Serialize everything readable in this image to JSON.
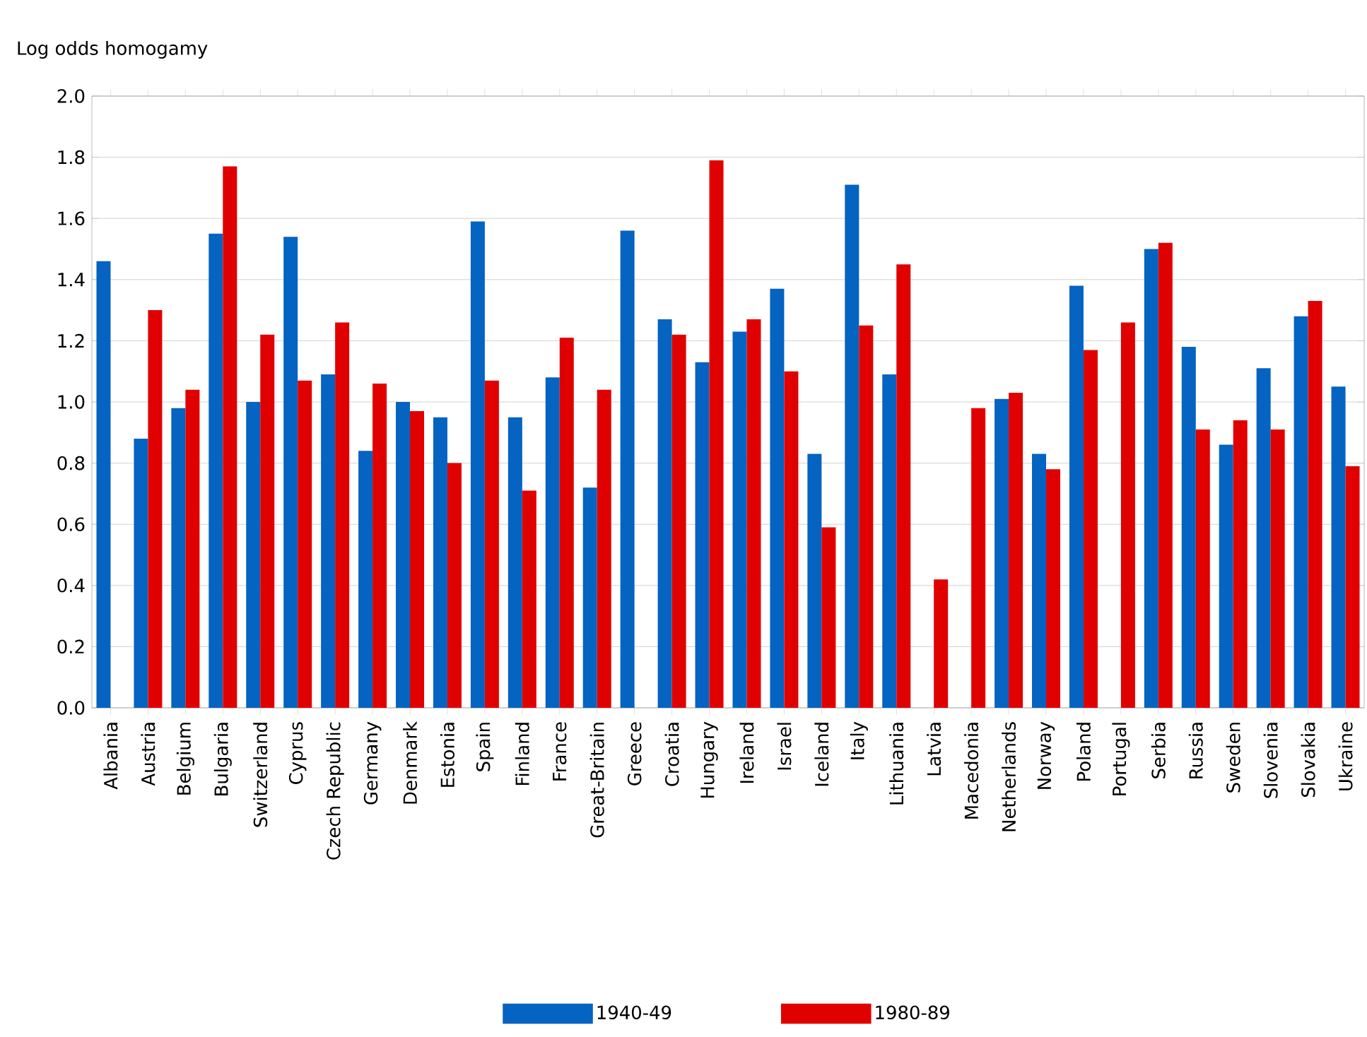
{
  "chart_data": {
    "type": "bar",
    "ylabel": "Log odds homogamy",
    "categories": [
      "Albania",
      "Austria",
      "Belgium",
      "Bulgaria",
      "Switzerland",
      "Cyprus",
      "Czech Republic",
      "Germany",
      "Denmark",
      "Estonia",
      "Spain",
      "Finland",
      "France",
      "Great-Britain",
      "Greece",
      "Croatia",
      "Hungary",
      "Ireland",
      "Israel",
      "Iceland",
      "Italy",
      "Lithuania",
      "Latvia",
      "Macedonia",
      "Netherlands",
      "Norway",
      "Poland",
      "Portugal",
      "Serbia",
      "Russia",
      "Sweden",
      "Slovenia",
      "Slovakia",
      "Ukraine"
    ],
    "series": [
      {
        "name": "1940-49",
        "color": "#0563c1",
        "values": [
          1.46,
          0.88,
          0.98,
          1.55,
          1.0,
          1.54,
          1.09,
          0.84,
          1.0,
          0.95,
          1.59,
          0.95,
          1.08,
          0.72,
          1.56,
          1.27,
          1.13,
          1.23,
          1.37,
          0.83,
          1.71,
          1.09,
          null,
          null,
          1.01,
          0.83,
          1.38,
          null,
          1.5,
          1.18,
          0.86,
          1.11,
          1.28,
          1.05
        ]
      },
      {
        "name": "1980-89",
        "color": "#e00000",
        "values": [
          null,
          1.3,
          1.04,
          1.77,
          1.22,
          1.07,
          1.26,
          1.06,
          0.97,
          0.8,
          1.07,
          0.71,
          1.21,
          1.04,
          null,
          1.22,
          1.79,
          1.27,
          1.1,
          0.59,
          1.25,
          1.45,
          0.42,
          0.98,
          1.03,
          0.78,
          1.17,
          1.26,
          1.52,
          0.91,
          0.94,
          0.91,
          1.33,
          0.79
        ]
      }
    ],
    "ylim": [
      0,
      2
    ],
    "yticks": [
      {
        "value": 0,
        "label": "0.0"
      },
      {
        "value": 0.2,
        "label": "0.2"
      },
      {
        "value": 0.4,
        "label": "0.4"
      },
      {
        "value": 0.6,
        "label": "0.6"
      },
      {
        "value": 0.8,
        "label": "0.8"
      },
      {
        "value": 1,
        "label": "1.0"
      },
      {
        "value": 1.2,
        "label": "1.2"
      },
      {
        "value": 1.4,
        "label": "1.4"
      },
      {
        "value": 1.6,
        "label": "1.6"
      },
      {
        "value": 1.8,
        "label": "1.8"
      },
      {
        "value": 2,
        "label": "2.0"
      }
    ],
    "grid": "y",
    "legend": "bottom"
  }
}
